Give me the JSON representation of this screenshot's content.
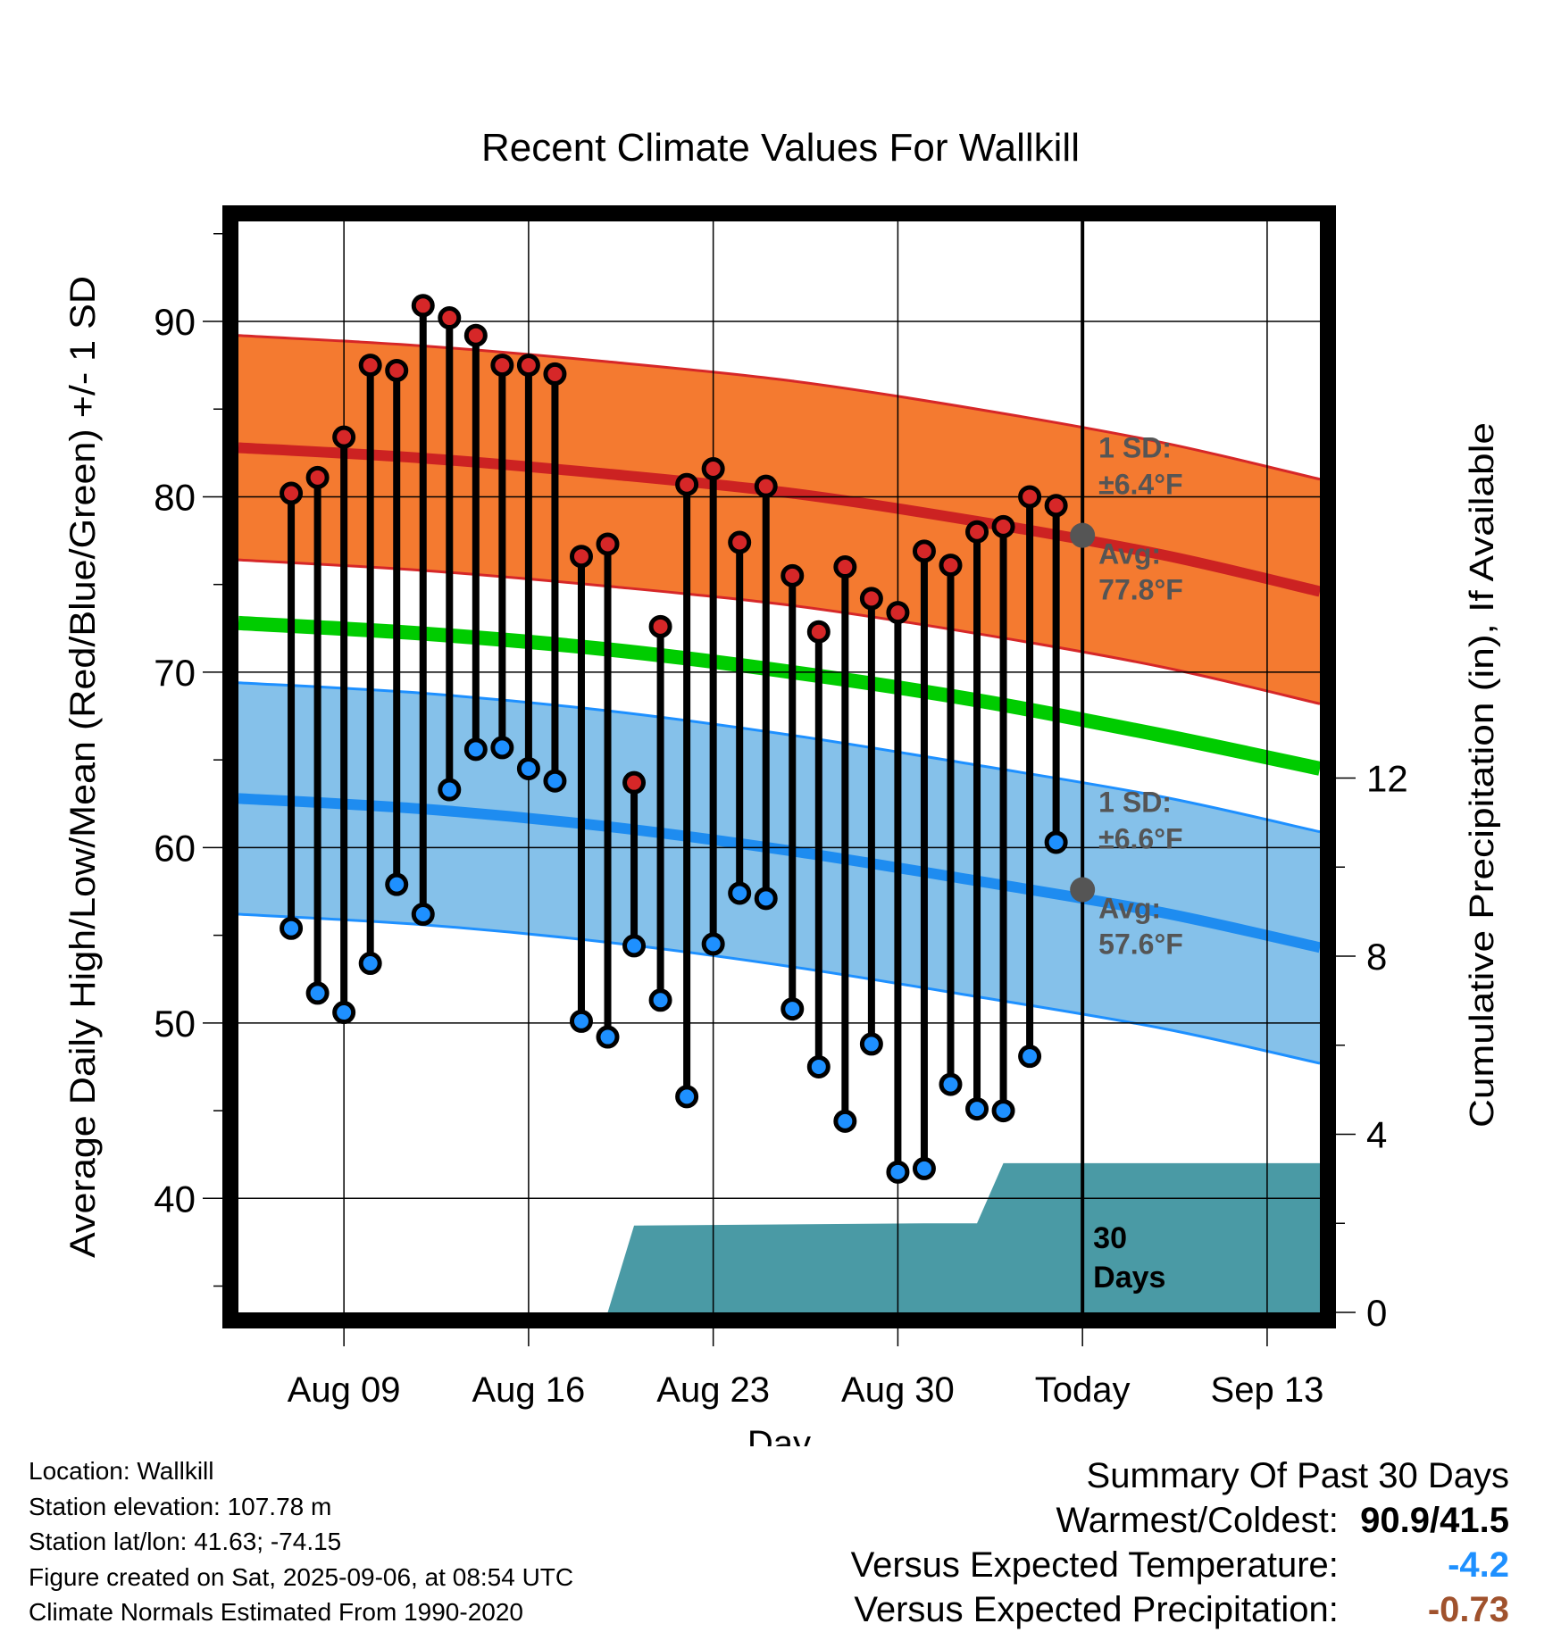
{
  "chart_data": {
    "type": "line",
    "title": "Recent Climate Values For Wallkill",
    "xlabel": "Day",
    "ylabel": "Average Daily High/Low/Mean (Red/Blue/Green) +/- 1 SD",
    "y2label": "Cumulative Precipitation (in), If Available",
    "ylim": [
      33.5,
      95.7
    ],
    "y2lim": [
      0,
      24.5
    ],
    "yticks": [
      40,
      50,
      60,
      70,
      80,
      90
    ],
    "y2ticks": [
      0,
      4,
      8,
      12
    ],
    "xlim": [
      "2025-08-05",
      "2025-09-15"
    ],
    "x_tick_labels": [
      {
        "date": "2025-08-09",
        "label": "Aug 09"
      },
      {
        "date": "2025-08-16",
        "label": "Aug 16"
      },
      {
        "date": "2025-08-23",
        "label": "Aug 23"
      },
      {
        "date": "2025-08-30",
        "label": "Aug 30"
      },
      {
        "date": "2025-09-06",
        "label": "Today"
      },
      {
        "date": "2025-09-13",
        "label": "Sep 13"
      }
    ],
    "today": "2025-09-06",
    "today_label": "30 Days",
    "grid": true,
    "colors": {
      "high": "#d62728",
      "high_band": "#f47a30",
      "normal_high_line": "#cc2222",
      "low": "#1e90ff",
      "low_band": "#85c1ea",
      "normal_low_line": "#1e8cf0",
      "mean": "#00cc00",
      "precip": "#4a9aa5",
      "annotation": "#555555",
      "temp_departure": "#1e90ff",
      "precip_departure": "#a0522d"
    },
    "observed": {
      "dates": [
        "2025-08-07",
        "2025-08-08",
        "2025-08-09",
        "2025-08-10",
        "2025-08-11",
        "2025-08-12",
        "2025-08-13",
        "2025-08-14",
        "2025-08-15",
        "2025-08-16",
        "2025-08-17",
        "2025-08-18",
        "2025-08-19",
        "2025-08-20",
        "2025-08-21",
        "2025-08-22",
        "2025-08-23",
        "2025-08-24",
        "2025-08-25",
        "2025-08-26",
        "2025-08-27",
        "2025-08-28",
        "2025-08-29",
        "2025-08-30",
        "2025-08-31",
        "2025-09-01",
        "2025-09-02",
        "2025-09-03",
        "2025-09-04",
        "2025-09-05"
      ],
      "high": [
        80.2,
        81.1,
        83.4,
        87.5,
        87.2,
        90.9,
        90.2,
        89.2,
        87.5,
        87.5,
        87.0,
        76.6,
        77.3,
        63.7,
        72.6,
        80.7,
        81.6,
        77.4,
        80.6,
        75.5,
        72.3,
        76.0,
        74.2,
        73.4,
        76.9,
        76.1,
        78.0,
        78.3,
        80.0,
        79.5
      ],
      "low": [
        55.4,
        51.7,
        50.6,
        53.4,
        57.9,
        56.2,
        63.3,
        65.6,
        65.7,
        64.5,
        63.8,
        50.1,
        49.2,
        54.4,
        51.3,
        45.8,
        54.5,
        57.4,
        57.1,
        50.8,
        47.5,
        44.4,
        48.8,
        41.5,
        41.7,
        46.5,
        45.1,
        45.0,
        48.1,
        60.3
      ]
    },
    "normals": {
      "dates": [
        "2025-08-05",
        "2025-08-12",
        "2025-08-19",
        "2025-08-26",
        "2025-09-02",
        "2025-09-09",
        "2025-09-15"
      ],
      "avg_high": [
        82.8,
        82.2,
        81.3,
        80.2,
        78.6,
        76.7,
        74.6
      ],
      "avg_high_sd": 6.4,
      "avg_low": [
        62.8,
        62.2,
        61.2,
        59.8,
        58.1,
        56.3,
        54.3
      ],
      "avg_low_sd": 6.6,
      "mean": [
        72.8,
        72.2,
        71.3,
        70.0,
        68.4,
        66.4,
        64.5
      ]
    },
    "precip_cumulative": {
      "dates": [
        "2025-08-05",
        "2025-08-19",
        "2025-08-20",
        "2025-08-31",
        "2025-09-02",
        "2025-09-03",
        "2025-09-15"
      ],
      "values": [
        0,
        0,
        1.95,
        2.0,
        2.0,
        3.35,
        3.35
      ]
    },
    "annotations": {
      "high_sd": "1 SD:",
      "high_sd_value": "±6.4°F",
      "high_avg": "Avg:",
      "high_avg_value": "77.8°F",
      "high_avg_today": 77.8,
      "low_sd": "1 SD:",
      "low_sd_value": "±6.6°F",
      "low_avg": "Avg:",
      "low_avg_value": "57.6°F",
      "low_avg_today": 57.6
    }
  },
  "info": {
    "location": "Location: Wallkill",
    "elevation": "Station elevation: 107.78 m",
    "latlon": "Station lat/lon: 41.63; -74.15",
    "created": "Figure created on Sat, 2025-09-06, at 08:54 UTC",
    "normals": "Climate Normals Estimated From 1990-2020"
  },
  "summary": {
    "title": "Summary Of Past 30 Days",
    "warm_cold_label": "Warmest/Coldest:",
    "warm_cold_value": "90.9/41.5",
    "temp_label": "Versus Expected Temperature:",
    "temp_value": "-4.2",
    "precip_label": "Versus Expected Precipitation:",
    "precip_value": "-0.73"
  }
}
